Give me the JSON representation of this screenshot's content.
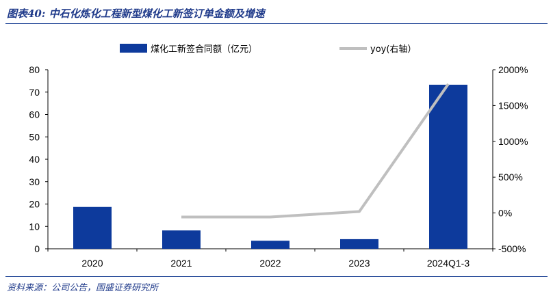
{
  "header": {
    "title": "图表40:  中石化炼化工程新型煤化工新签订单金额及增速"
  },
  "footer": {
    "source": "资料来源：公司公告，国盛证券研究所"
  },
  "colors": {
    "bar": "#0d3a9c",
    "line": "#bfbfbf",
    "accent": "#1f3a8a"
  },
  "chart_data": {
    "type": "bar",
    "categories": [
      "2020",
      "2021",
      "2022",
      "2023",
      "2024Q1-3"
    ],
    "series": [
      {
        "name": "煤化工新签合同额（亿元）",
        "type": "bar",
        "axis": "left",
        "values": [
          18.7,
          8.2,
          3.6,
          4.3,
          73.3
        ]
      },
      {
        "name": "yoy(右轴）",
        "type": "line",
        "axis": "right",
        "values": [
          null,
          -56,
          -56,
          20,
          1800
        ]
      }
    ],
    "ylim": [
      0,
      80
    ],
    "yticks": [
      "0",
      "10",
      "20",
      "30",
      "40",
      "50",
      "60",
      "70",
      "80"
    ],
    "y2lim": [
      -500,
      2000
    ],
    "y2ticks": [
      "-500%",
      "0%",
      "500%",
      "1000%",
      "1500%",
      "2000%"
    ],
    "legend": "top-center",
    "grid": false
  }
}
